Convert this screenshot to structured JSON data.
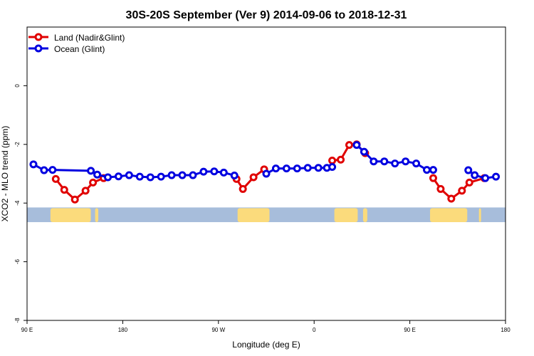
{
  "chart_data": {
    "type": "line",
    "title": "30S-20S September (Ver 9)   2014-09-06 to 2018-12-31",
    "xlabel": "Longitude (deg E)",
    "ylabel": "XCO2 - MLO trend (ppm)",
    "xlim": [
      90,
      540
    ],
    "ylim": [
      -8,
      2
    ],
    "x_ticks": [
      {
        "value": 90,
        "label": "90 E"
      },
      {
        "value": 180,
        "label": "180"
      },
      {
        "value": 270,
        "label": "90 W"
      },
      {
        "value": 360,
        "label": "0"
      },
      {
        "value": 450,
        "label": "90 E"
      },
      {
        "value": 540,
        "label": "180"
      }
    ],
    "y_ticks": [
      {
        "value": 0,
        "label": "0"
      },
      {
        "value": -2,
        "label": "-2"
      },
      {
        "value": -4,
        "label": "-4"
      },
      {
        "value": -6,
        "label": "-6"
      },
      {
        "value": -8,
        "label": "-8"
      }
    ],
    "legend": {
      "placement": "top-left"
    },
    "series": [
      {
        "name": "Land (Nadir&Glint)",
        "color": "#e00000",
        "segments": [
          [
            [
              117,
              -3.18
            ],
            [
              125,
              -3.55
            ],
            [
              135,
              -3.88
            ],
            [
              145,
              -3.58
            ],
            [
              152,
              -3.3
            ],
            [
              162,
              -3.15
            ]
          ],
          [
            [
              287,
              -3.18
            ],
            [
              293,
              -3.52
            ],
            [
              303,
              -3.12
            ],
            [
              313,
              -2.85
            ]
          ],
          [
            [
              377,
              -2.55
            ],
            [
              385,
              -2.52
            ],
            [
              393,
              -2.02
            ],
            [
              400,
              -2.0
            ],
            [
              408,
              -2.3
            ]
          ],
          [
            [
              472,
              -3.15
            ],
            [
              479,
              -3.52
            ],
            [
              489,
              -3.85
            ],
            [
              499,
              -3.58
            ],
            [
              506,
              -3.3
            ],
            [
              520,
              -3.15
            ]
          ]
        ]
      },
      {
        "name": "Ocean (Glint)",
        "color": "#0000e0",
        "segments": [
          [
            [
              96,
              -2.68
            ],
            [
              106,
              -2.88
            ],
            [
              114,
              -2.87
            ],
            [
              150,
              -2.9
            ],
            [
              156,
              -3.03
            ],
            [
              166,
              -3.12
            ],
            [
              176,
              -3.09
            ],
            [
              186,
              -3.05
            ],
            [
              196,
              -3.1
            ],
            [
              206,
              -3.12
            ],
            [
              216,
              -3.1
            ],
            [
              226,
              -3.05
            ],
            [
              236,
              -3.05
            ],
            [
              246,
              -3.05
            ],
            [
              256,
              -2.93
            ],
            [
              266,
              -2.92
            ],
            [
              275,
              -2.96
            ],
            [
              285,
              -3.06
            ]
          ],
          [
            [
              315,
              -3.0
            ],
            [
              324,
              -2.82
            ],
            [
              334,
              -2.82
            ],
            [
              344,
              -2.82
            ],
            [
              354,
              -2.8
            ],
            [
              364,
              -2.8
            ],
            [
              372,
              -2.8
            ],
            [
              377,
              -2.77
            ]
          ],
          [
            [
              400,
              -2.02
            ],
            [
              407,
              -2.25
            ],
            [
              416,
              -2.58
            ],
            [
              426,
              -2.58
            ],
            [
              436,
              -2.65
            ],
            [
              446,
              -2.58
            ],
            [
              456,
              -2.65
            ],
            [
              466,
              -2.87
            ],
            [
              472,
              -2.87
            ]
          ],
          [
            [
              505,
              -2.88
            ],
            [
              511,
              -3.05
            ],
            [
              521,
              -3.15
            ],
            [
              531,
              -3.1
            ]
          ]
        ]
      }
    ],
    "background_band": {
      "ocean_color": "#a7bddb",
      "land_color": "#fbdb7c",
      "y_range": [
        -4.65,
        -4.15
      ],
      "land_spans": [
        [
          112,
          150
        ],
        [
          154,
          157
        ],
        [
          288,
          318
        ],
        [
          379,
          401
        ],
        [
          406,
          410
        ],
        [
          469,
          504
        ],
        [
          515,
          517
        ]
      ]
    }
  }
}
